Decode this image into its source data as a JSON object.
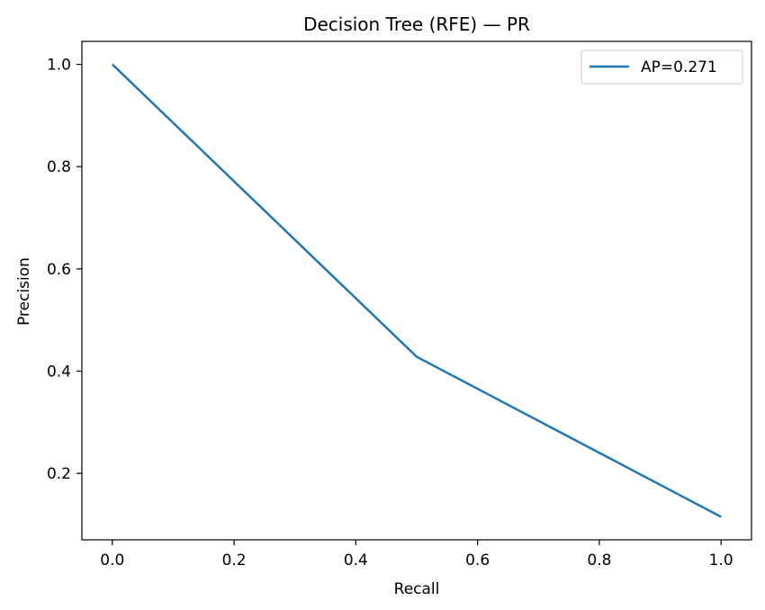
{
  "chart_data": {
    "type": "line",
    "title": "Decision Tree (RFE) — PR",
    "xlabel": "Recall",
    "ylabel": "Precision",
    "xlim": [
      -0.05,
      1.05
    ],
    "ylim": [
      0.07,
      1.045
    ],
    "xticks": [
      0.0,
      0.2,
      0.4,
      0.6,
      0.8,
      1.0
    ],
    "xtick_labels": [
      "0.0",
      "0.2",
      "0.4",
      "0.6",
      "0.8",
      "1.0"
    ],
    "yticks": [
      0.2,
      0.4,
      0.6,
      0.8,
      1.0
    ],
    "ytick_labels": [
      "0.2",
      "0.4",
      "0.6",
      "0.8",
      "1.0"
    ],
    "grid": false,
    "legend_position": "top-right",
    "series": [
      {
        "name": "AP=0.271",
        "color": "#1f77b4",
        "x": [
          0.0,
          0.5,
          1.0
        ],
        "y": [
          1.0,
          0.428,
          0.115
        ]
      }
    ]
  }
}
